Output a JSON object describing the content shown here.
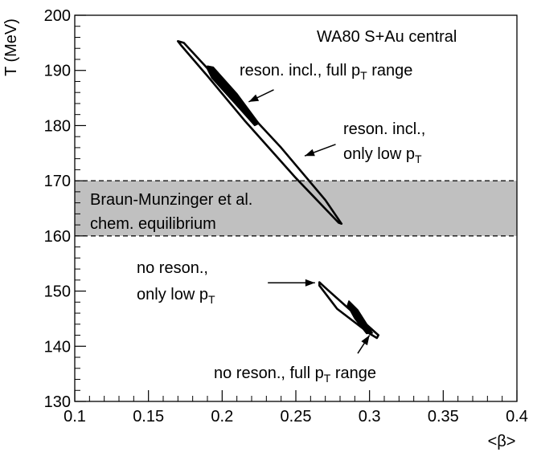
{
  "chart_data": {
    "type": "scatter",
    "title": "WA80 S+Au central",
    "xlabel": "<β>",
    "ylabel": "T (MeV)",
    "xlim": [
      0.1,
      0.4
    ],
    "ylim": [
      130,
      200
    ],
    "x_ticks": [
      0.1,
      0.15,
      0.2,
      0.25,
      0.3,
      0.35,
      0.4
    ],
    "x_tick_labels": [
      "0.1",
      "0.15",
      "0.2",
      "0.25",
      "0.3",
      "0.35",
      "0.4"
    ],
    "y_ticks": [
      130,
      140,
      150,
      160,
      170,
      180,
      190,
      200
    ],
    "y_tick_labels": [
      "130",
      "140",
      "150",
      "160",
      "170",
      "180",
      "190",
      "200"
    ],
    "band": {
      "ymin": 160,
      "ymax": 170,
      "label_line1": "Braun-Munzinger et al.",
      "label_line2": "chem. equilibrium",
      "color": "#c0c0c0"
    },
    "series": [
      {
        "style": "outline",
        "contour": [
          [
            0.17,
            195.3
          ],
          [
            0.174,
            195.0
          ],
          [
            0.2,
            187.5
          ],
          [
            0.24,
            176.0
          ],
          [
            0.27,
            166.5
          ],
          [
            0.281,
            162.2
          ],
          [
            0.279,
            162.4
          ],
          [
            0.25,
            170.5
          ],
          [
            0.215,
            181.0
          ],
          [
            0.19,
            189.0
          ],
          [
            0.172,
            194.6
          ]
        ]
      },
      {
        "style": "filled",
        "contour": [
          [
            0.19,
            190.8
          ],
          [
            0.194,
            190.6
          ],
          [
            0.21,
            185.8
          ],
          [
            0.225,
            180.4
          ],
          [
            0.222,
            180.0
          ],
          [
            0.208,
            184.2
          ],
          [
            0.193,
            188.6
          ],
          [
            0.19,
            190.2
          ]
        ]
      },
      {
        "style": "outline",
        "contour": [
          [
            0.266,
            151.6
          ],
          [
            0.27,
            150.6
          ],
          [
            0.306,
            142.0
          ],
          [
            0.305,
            141.5
          ],
          [
            0.3,
            142.3
          ],
          [
            0.278,
            146.8
          ],
          [
            0.266,
            151.0
          ]
        ]
      },
      {
        "style": "filled",
        "contour": [
          [
            0.286,
            148.2
          ],
          [
            0.292,
            146.6
          ],
          [
            0.302,
            142.4
          ],
          [
            0.298,
            142.3
          ],
          [
            0.29,
            145.0
          ],
          [
            0.285,
            147.4
          ]
        ]
      }
    ],
    "annotations": [
      {
        "id": "a1",
        "line1": "reson. incl., full p",
        "sub": "T",
        "line1_end": " range",
        "arrow_from": [
          0.235,
          186.5
        ],
        "arrow_to": [
          0.218,
          184.3
        ]
      },
      {
        "id": "a2",
        "line1": "reson. incl.,",
        "line2": "only low p",
        "sub": "T",
        "arrow_from": [
          0.277,
          176.6
        ],
        "arrow_to": [
          0.256,
          174.5
        ]
      },
      {
        "id": "a3",
        "line1": "no reson.,",
        "line2": "only low p",
        "sub": "T",
        "arrow_from": [
          0.231,
          151.5
        ],
        "arrow_to": [
          0.263,
          151.5
        ]
      },
      {
        "id": "a4",
        "line1": "no reson., full p",
        "sub": "T",
        "line1_end": " range",
        "arrow_from": [
          0.292,
          138.7
        ],
        "arrow_to": [
          0.3,
          142.0
        ]
      }
    ],
    "grid": false
  }
}
